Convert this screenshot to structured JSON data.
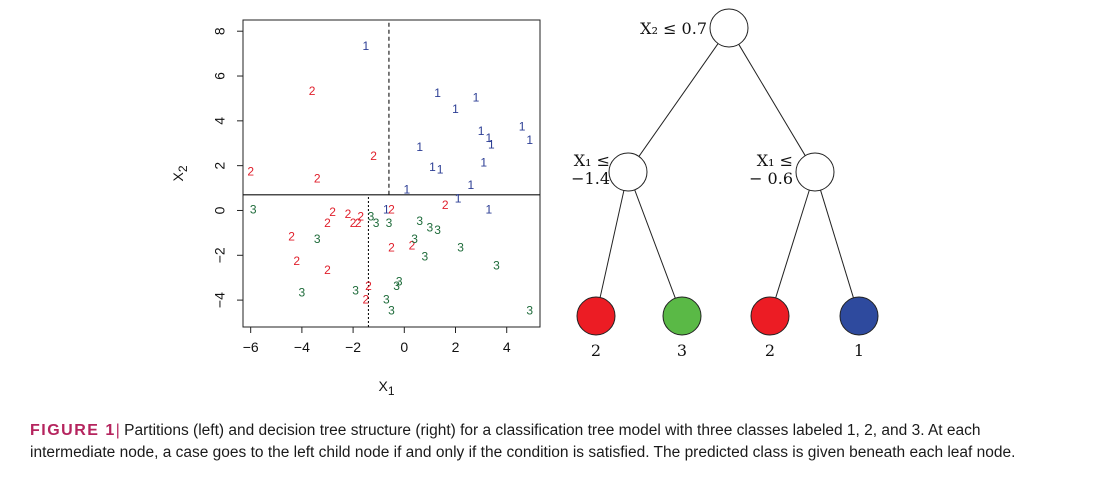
{
  "chart_data": [
    {
      "type": "scatter",
      "xlabel": "X",
      "xlabel_sub": "1",
      "ylabel": "X",
      "ylabel_sub": "2",
      "xlim": [
        -6.3,
        5.3
      ],
      "ylim": [
        -5.2,
        8.5
      ],
      "xticks": [
        -6,
        -4,
        -2,
        0,
        2,
        4
      ],
      "xtick_labels": [
        "−6",
        "−4",
        "−2",
        "0",
        "2",
        "4"
      ],
      "yticks": [
        -4,
        -2,
        0,
        2,
        4,
        6,
        8
      ],
      "ytick_labels": [
        "−4",
        "−2",
        "0",
        "2",
        "4",
        "6",
        "8"
      ],
      "grid": false,
      "splits": [
        {
          "type": "hline",
          "y": 0.7,
          "style": "solid"
        },
        {
          "type": "vline",
          "x": -1.4,
          "y_range": [
            -5.2,
            0.7
          ],
          "style": "dotted"
        },
        {
          "type": "vline",
          "x": -0.6,
          "y_range": [
            0.7,
            8.5
          ],
          "style": "dashed"
        }
      ],
      "class_colors": {
        "1": "#2b3d94",
        "2": "#e01f2b",
        "3": "#1e6b3a"
      },
      "points": [
        {
          "x": -1.5,
          "y": 7.3,
          "label": "1"
        },
        {
          "x": 1.3,
          "y": 5.2,
          "label": "1"
        },
        {
          "x": 2.0,
          "y": 4.5,
          "label": "1"
        },
        {
          "x": 2.8,
          "y": 5.0,
          "label": "1"
        },
        {
          "x": 3.0,
          "y": 3.5,
          "label": "1"
        },
        {
          "x": 3.3,
          "y": 3.2,
          "label": "1"
        },
        {
          "x": 3.4,
          "y": 2.9,
          "label": "1"
        },
        {
          "x": 4.6,
          "y": 3.7,
          "label": "1"
        },
        {
          "x": 4.9,
          "y": 3.1,
          "label": "1"
        },
        {
          "x": 0.6,
          "y": 2.8,
          "label": "1"
        },
        {
          "x": 1.1,
          "y": 1.9,
          "label": "1"
        },
        {
          "x": 1.4,
          "y": 1.8,
          "label": "1"
        },
        {
          "x": 3.1,
          "y": 2.1,
          "label": "1"
        },
        {
          "x": 2.6,
          "y": 1.1,
          "label": "1"
        },
        {
          "x": 0.1,
          "y": 0.9,
          "label": "1"
        },
        {
          "x": 2.1,
          "y": 0.5,
          "label": "1"
        },
        {
          "x": 3.3,
          "y": 0.0,
          "label": "1"
        },
        {
          "x": -0.7,
          "y": 0.0,
          "label": "1"
        },
        {
          "x": -3.6,
          "y": 5.3,
          "label": "2"
        },
        {
          "x": -1.2,
          "y": 2.4,
          "label": "2"
        },
        {
          "x": -6.0,
          "y": 1.7,
          "label": "2"
        },
        {
          "x": -3.4,
          "y": 1.4,
          "label": "2"
        },
        {
          "x": -0.5,
          "y": 0.0,
          "label": "2"
        },
        {
          "x": 1.6,
          "y": 0.2,
          "label": "2"
        },
        {
          "x": -2.8,
          "y": -0.1,
          "label": "2"
        },
        {
          "x": -2.2,
          "y": -0.2,
          "label": "2"
        },
        {
          "x": -1.7,
          "y": -0.3,
          "label": "2"
        },
        {
          "x": -3.0,
          "y": -0.6,
          "label": "2"
        },
        {
          "x": -2.0,
          "y": -0.6,
          "label": "2"
        },
        {
          "x": -1.8,
          "y": -0.6,
          "label": "2"
        },
        {
          "x": -4.4,
          "y": -1.2,
          "label": "2"
        },
        {
          "x": 0.3,
          "y": -1.6,
          "label": "2"
        },
        {
          "x": -0.5,
          "y": -1.7,
          "label": "2"
        },
        {
          "x": -4.2,
          "y": -2.3,
          "label": "2"
        },
        {
          "x": -3.0,
          "y": -2.7,
          "label": "2"
        },
        {
          "x": -1.4,
          "y": -3.4,
          "label": "2"
        },
        {
          "x": -1.5,
          "y": -4.0,
          "label": "2"
        },
        {
          "x": -5.9,
          "y": 0.0,
          "label": "3"
        },
        {
          "x": -3.4,
          "y": -1.3,
          "label": "3"
        },
        {
          "x": -4.0,
          "y": -3.7,
          "label": "3"
        },
        {
          "x": -1.3,
          "y": -0.3,
          "label": "3"
        },
        {
          "x": -1.1,
          "y": -0.6,
          "label": "3"
        },
        {
          "x": -0.6,
          "y": -0.6,
          "label": "3"
        },
        {
          "x": 0.6,
          "y": -0.5,
          "label": "3"
        },
        {
          "x": 1.0,
          "y": -0.8,
          "label": "3"
        },
        {
          "x": 1.3,
          "y": -0.9,
          "label": "3"
        },
        {
          "x": 0.4,
          "y": -1.3,
          "label": "3"
        },
        {
          "x": 2.2,
          "y": -1.7,
          "label": "3"
        },
        {
          "x": 0.8,
          "y": -2.1,
          "label": "3"
        },
        {
          "x": 3.6,
          "y": -2.5,
          "label": "3"
        },
        {
          "x": -0.2,
          "y": -3.2,
          "label": "3"
        },
        {
          "x": -0.3,
          "y": -3.4,
          "label": "3"
        },
        {
          "x": -1.9,
          "y": -3.6,
          "label": "3"
        },
        {
          "x": -0.7,
          "y": -4.0,
          "label": "3"
        },
        {
          "x": -0.5,
          "y": -4.5,
          "label": "3"
        },
        {
          "x": 4.9,
          "y": -4.5,
          "label": "3"
        }
      ]
    }
  ],
  "tree": {
    "nodes": [
      {
        "id": "root",
        "kind": "internal",
        "label_lines": [
          "X₂ ≤ 0.7"
        ]
      },
      {
        "id": "left",
        "kind": "internal",
        "label_lines": [
          "X₁ ≤",
          "−1.4"
        ]
      },
      {
        "id": "right",
        "kind": "internal",
        "label_lines": [
          "X₁ ≤",
          "− 0.6"
        ]
      },
      {
        "id": "leaf1",
        "kind": "leaf",
        "class_label": "2",
        "color": "#ec1c24"
      },
      {
        "id": "leaf2",
        "kind": "leaf",
        "class_label": "3",
        "color": "#5ab946"
      },
      {
        "id": "leaf3",
        "kind": "leaf",
        "class_label": "2",
        "color": "#ec1c24"
      },
      {
        "id": "leaf4",
        "kind": "leaf",
        "class_label": "1",
        "color": "#2e4a9e"
      }
    ],
    "edges": [
      [
        "root",
        "left"
      ],
      [
        "root",
        "right"
      ],
      [
        "left",
        "leaf1"
      ],
      [
        "left",
        "leaf2"
      ],
      [
        "right",
        "leaf3"
      ],
      [
        "right",
        "leaf4"
      ]
    ]
  },
  "caption": {
    "label": "FIGURE 1",
    "separator": "|",
    "text": "Partitions (left) and decision tree structure (right) for a classification tree model with three classes labeled 1, 2, and 3. At each intermediate node, a case goes to the left child node if and only if the condition is satisfied. The predicted class is given beneath each leaf node."
  },
  "accent_color": "#b5245e"
}
